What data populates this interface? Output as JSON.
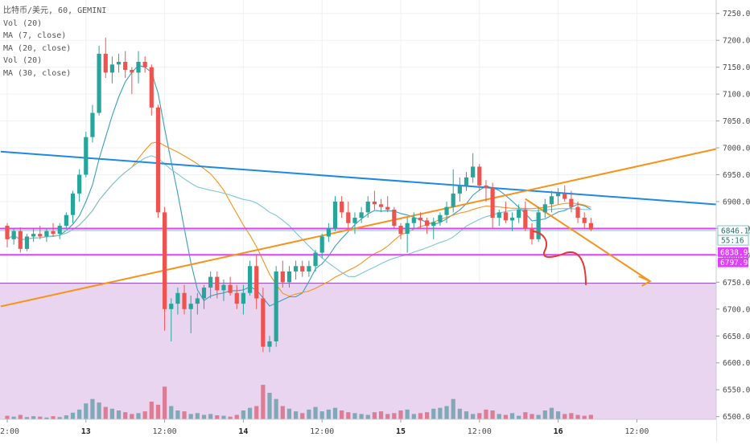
{
  "legend": {
    "symbol": "比特币/美元, 60, GEMINI",
    "vol1": "Vol (20)",
    "ma7": "MA (7, close)",
    "ma20": "MA (20, close)",
    "vol2": "Vol (20)",
    "ma30": "MA (30, close)"
  },
  "colors": {
    "up": "#26a69a",
    "down": "#ef5350",
    "vol_up": "#7aa7b3",
    "vol_down": "#d9788f",
    "ma7": "#3a9fb8",
    "ma20": "#f7931a",
    "ma30": "#7ec6d6",
    "trend_blue": "#1e88e5",
    "trend_orange": "#f7931a",
    "level_magenta": "#e040fb",
    "zone_fill": "#e8d0ee",
    "marker_red": "#e53935"
  },
  "chart_data": {
    "type": "candlestick",
    "instrument": "比特币/美元",
    "interval": "60",
    "exchange": "GEMINI",
    "y_axis": {
      "range": [
        6495,
        7275
      ],
      "ticks": [
        "7250.00",
        "7200.00",
        "7150.00",
        "7100.00",
        "7050.00",
        "7000.00",
        "6950.00",
        "6900.00",
        "6850.00",
        "6800.00",
        "6750.00",
        "6700.00",
        "6650.00",
        "6600.00",
        "6550.00",
        "6500.00"
      ]
    },
    "x_axis": {
      "labels": [
        {
          "text": "12:00",
          "bar": 0,
          "bold": false
        },
        {
          "text": "13",
          "bar": 12,
          "bold": true
        },
        {
          "text": "12:00",
          "bar": 24,
          "bold": false
        },
        {
          "text": "14",
          "bar": 36,
          "bold": true
        },
        {
          "text": "12:00",
          "bar": 48,
          "bold": false
        },
        {
          "text": "15",
          "bar": 60,
          "bold": true
        },
        {
          "text": "12:00",
          "bar": 72,
          "bold": false
        },
        {
          "text": "16",
          "bar": 84,
          "bold": true
        },
        {
          "text": "12:00",
          "bar": 96,
          "bold": false
        }
      ]
    },
    "candles": [
      [
        6855,
        6860,
        6815,
        6830
      ],
      [
        6830,
        6850,
        6820,
        6845
      ],
      [
        6845,
        6852,
        6805,
        6812
      ],
      [
        6812,
        6840,
        6808,
        6835
      ],
      [
        6835,
        6850,
        6825,
        6840
      ],
      [
        6840,
        6855,
        6830,
        6835
      ],
      [
        6835,
        6850,
        6825,
        6845
      ],
      [
        6845,
        6860,
        6835,
        6840
      ],
      [
        6840,
        6860,
        6830,
        6855
      ],
      [
        6855,
        6880,
        6850,
        6875
      ],
      [
        6875,
        6920,
        6860,
        6915
      ],
      [
        6915,
        6960,
        6900,
        6950
      ],
      [
        6950,
        7030,
        6945,
        7020
      ],
      [
        7020,
        7080,
        7010,
        7065
      ],
      [
        7065,
        7190,
        7060,
        7175
      ],
      [
        7175,
        7205,
        7130,
        7140
      ],
      [
        7140,
        7170,
        7120,
        7155
      ],
      [
        7155,
        7175,
        7140,
        7160
      ],
      [
        7160,
        7180,
        7130,
        7145
      ],
      [
        7145,
        7150,
        7100,
        7140
      ],
      [
        7140,
        7180,
        7120,
        7160
      ],
      [
        7160,
        7170,
        7140,
        7150
      ],
      [
        7150,
        7155,
        7060,
        7075
      ],
      [
        7075,
        7080,
        6870,
        6880
      ],
      [
        6880,
        6890,
        6660,
        6700
      ],
      [
        6700,
        6720,
        6640,
        6710
      ],
      [
        6710,
        6740,
        6690,
        6730
      ],
      [
        6730,
        6745,
        6690,
        6700
      ],
      [
        6700,
        6725,
        6655,
        6710
      ],
      [
        6710,
        6730,
        6690,
        6720
      ],
      [
        6720,
        6745,
        6700,
        6740
      ],
      [
        6740,
        6770,
        6720,
        6760
      ],
      [
        6760,
        6770,
        6720,
        6735
      ],
      [
        6735,
        6755,
        6715,
        6745
      ],
      [
        6745,
        6760,
        6725,
        6730
      ],
      [
        6730,
        6745,
        6700,
        6710
      ],
      [
        6710,
        6745,
        6690,
        6730
      ],
      [
        6730,
        6790,
        6725,
        6780
      ],
      [
        6780,
        6800,
        6700,
        6720
      ],
      [
        6720,
        6740,
        6620,
        6630
      ],
      [
        6630,
        6650,
        6620,
        6640
      ],
      [
        6640,
        6780,
        6630,
        6770
      ],
      [
        6770,
        6790,
        6740,
        6750
      ],
      [
        6750,
        6780,
        6740,
        6770
      ],
      [
        6770,
        6790,
        6755,
        6780
      ],
      [
        6780,
        6790,
        6760,
        6770
      ],
      [
        6770,
        6790,
        6760,
        6780
      ],
      [
        6780,
        6810,
        6770,
        6805
      ],
      [
        6805,
        6840,
        6795,
        6835
      ],
      [
        6835,
        6860,
        6825,
        6850
      ],
      [
        6850,
        6910,
        6845,
        6900
      ],
      [
        6900,
        6910,
        6870,
        6880
      ],
      [
        6880,
        6900,
        6850,
        6860
      ],
      [
        6860,
        6880,
        6840,
        6870
      ],
      [
        6870,
        6890,
        6860,
        6880
      ],
      [
        6880,
        6910,
        6870,
        6900
      ],
      [
        6900,
        6920,
        6885,
        6895
      ],
      [
        6895,
        6905,
        6880,
        6890
      ],
      [
        6890,
        6910,
        6880,
        6885
      ],
      [
        6885,
        6890,
        6850,
        6855
      ],
      [
        6855,
        6860,
        6830,
        6840
      ],
      [
        6840,
        6870,
        6805,
        6860
      ],
      [
        6860,
        6880,
        6850,
        6870
      ],
      [
        6870,
        6880,
        6850,
        6865
      ],
      [
        6865,
        6870,
        6840,
        6855
      ],
      [
        6855,
        6870,
        6830,
        6862
      ],
      [
        6862,
        6880,
        6855,
        6875
      ],
      [
        6875,
        6900,
        6860,
        6890
      ],
      [
        6890,
        6960,
        6880,
        6915
      ],
      [
        6915,
        6945,
        6900,
        6930
      ],
      [
        6930,
        6955,
        6920,
        6945
      ],
      [
        6945,
        6990,
        6935,
        6965
      ],
      [
        6965,
        6970,
        6920,
        6930
      ],
      [
        6930,
        6940,
        6900,
        6925
      ],
      [
        6925,
        6935,
        6850,
        6870
      ],
      [
        6870,
        6885,
        6855,
        6880
      ],
      [
        6880,
        6900,
        6860,
        6865
      ],
      [
        6865,
        6880,
        6845,
        6870
      ],
      [
        6870,
        6895,
        6860,
        6885
      ],
      [
        6885,
        6900,
        6845,
        6850
      ],
      [
        6850,
        6860,
        6820,
        6830
      ],
      [
        6830,
        6890,
        6825,
        6880
      ],
      [
        6880,
        6905,
        6870,
        6895
      ],
      [
        6895,
        6920,
        6880,
        6910
      ],
      [
        6910,
        6925,
        6895,
        6915
      ],
      [
        6915,
        6930,
        6900,
        6905
      ],
      [
        6905,
        6920,
        6880,
        6890
      ],
      [
        6890,
        6900,
        6860,
        6870
      ],
      [
        6870,
        6880,
        6850,
        6860
      ],
      [
        6860,
        6870,
        6845,
        6848
      ]
    ],
    "volumes_relative": [
      8,
      6,
      10,
      5,
      7,
      6,
      4,
      7,
      5,
      9,
      15,
      22,
      36,
      46,
      38,
      28,
      24,
      20,
      16,
      12,
      14,
      18,
      40,
      33,
      74,
      30,
      20,
      18,
      12,
      14,
      10,
      12,
      9,
      8,
      6,
      10,
      20,
      26,
      30,
      78,
      60,
      46,
      30,
      24,
      18,
      14,
      22,
      28,
      18,
      22,
      26,
      20,
      16,
      14,
      12,
      10,
      16,
      18,
      12,
      14,
      20,
      22,
      12,
      14,
      16,
      24,
      26,
      30,
      46,
      24,
      18,
      12,
      14,
      22,
      20,
      12,
      10,
      14,
      8,
      16,
      12,
      10,
      20,
      26,
      18,
      12,
      14,
      10,
      8,
      10
    ],
    "moving_averages": [
      {
        "name": "MA (7, close)",
        "color_key": "ma7"
      },
      {
        "name": "MA (20, close)",
        "color_key": "ma20"
      },
      {
        "name": "MA (30, close)",
        "color_key": "ma30"
      }
    ],
    "horizontal_levels": [
      6846.13,
      6838.93,
      6797.94
    ],
    "price_tags": [
      {
        "text": "6846.13",
        "price": 6846.13,
        "kind": "teal"
      },
      {
        "text": "55:16",
        "price": 6828,
        "kind": "teal"
      },
      {
        "text": "6838.93",
        "price": 6806,
        "kind": "magenta"
      },
      {
        "text": "6797.94",
        "price": 6787,
        "kind": "magenta"
      }
    ],
    "demand_zone": {
      "top": 6748,
      "bottom": 6495
    },
    "trendlines": [
      {
        "name": "descending",
        "color_key": "trend_blue",
        "from": {
          "bar": -1,
          "price": 6993
        },
        "to": {
          "bar": 110,
          "price": 6893
        }
      },
      {
        "name": "ascending",
        "color_key": "trend_orange",
        "from": {
          "bar": -1,
          "price": 6705
        },
        "to": {
          "bar": 110,
          "price": 7003
        }
      },
      {
        "name": "projection",
        "color_key": "trend_orange",
        "from": {
          "bar": 79,
          "price": 6905
        },
        "to": {
          "bar": 98,
          "price": 6752
        }
      }
    ]
  }
}
